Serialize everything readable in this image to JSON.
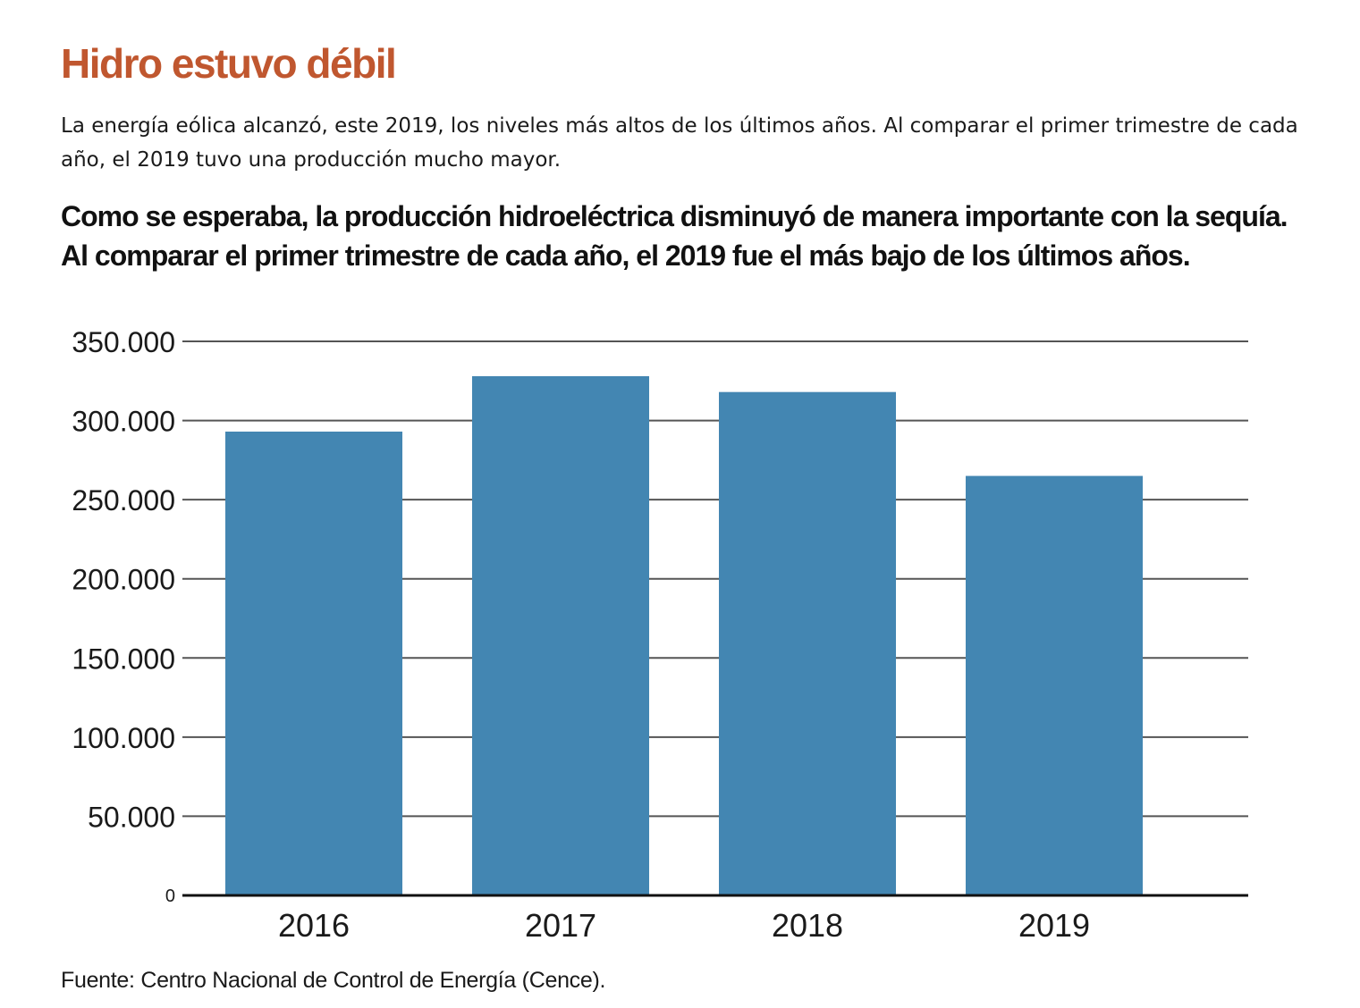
{
  "header": {
    "title": "Hidro estuvo débil",
    "intro": "La energía eólica alcanzó, este 2019, los niveles más altos de los últimos años. Al comparar el primer trimestre de cada año, el 2019 tuvo una producción mucho mayor.",
    "lead_line_1": "Como se esperaba, la producción hidroeléctrica disminuyó de manera importante con la sequía.",
    "lead_line_2": "Al comparar el primer trimestre de cada año, el 2019 fue el más bajo de los últimos años."
  },
  "footer": {
    "source": "Fuente: Centro Nacional de Control de Energía (Cence)."
  },
  "colors": {
    "title": "#c0572f",
    "bar": "#4386b2",
    "grid": "#555555",
    "axis": "#111111"
  },
  "chart_data": {
    "type": "bar",
    "title": "",
    "xlabel": "",
    "ylabel": "",
    "categories": [
      "2016",
      "2017",
      "2018",
      "2019"
    ],
    "values": [
      293000,
      328000,
      318000,
      265000
    ],
    "ylim": [
      0,
      350000
    ],
    "yticks": [
      0,
      50000,
      100000,
      150000,
      200000,
      250000,
      300000,
      350000
    ],
    "ytick_labels": [
      "0",
      "50.000",
      "100.000",
      "150.000",
      "200.000",
      "250.000",
      "300.000",
      "350.000"
    ],
    "grid": true,
    "legend": "none"
  }
}
